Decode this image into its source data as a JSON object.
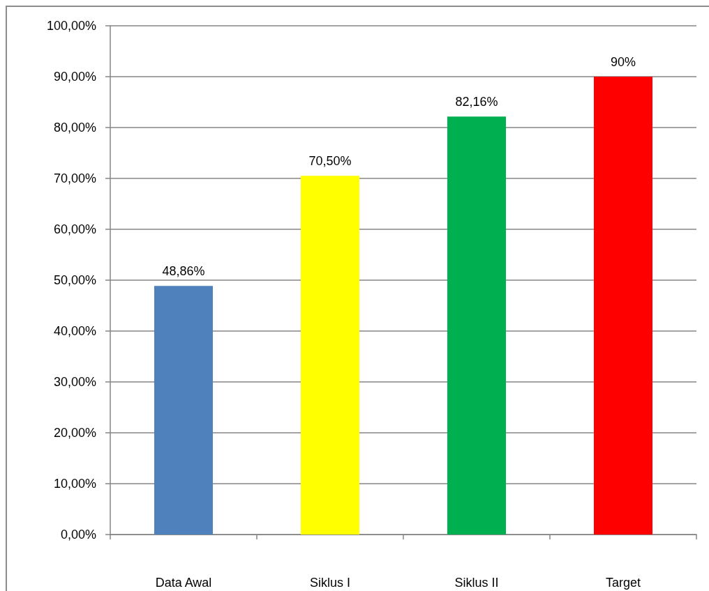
{
  "chart_data": {
    "type": "bar",
    "categories": [
      "Data Awal",
      "Siklus I",
      "Siklus II",
      "Target"
    ],
    "values": [
      48.86,
      70.5,
      82.16,
      90
    ],
    "colors": [
      "#4f81bd",
      "#ffff00",
      "#00b050",
      "#ff0000"
    ],
    "value_labels": [
      "48,86%",
      "70,50%",
      "82,16%",
      "90%"
    ],
    "ylim": [
      0,
      100
    ],
    "yticks": [
      {
        "value": 0,
        "label": "0,00%"
      },
      {
        "value": 10,
        "label": "10,00%"
      },
      {
        "value": 20,
        "label": "20,00%"
      },
      {
        "value": 30,
        "label": "30,00%"
      },
      {
        "value": 40,
        "label": "40,00%"
      },
      {
        "value": 50,
        "label": "50,00%"
      },
      {
        "value": 60,
        "label": "60,00%"
      },
      {
        "value": 70,
        "label": "70,00%"
      },
      {
        "value": 80,
        "label": "80,00%"
      },
      {
        "value": 90,
        "label": "90,00%"
      },
      {
        "value": 100,
        "label": "100,00%"
      }
    ],
    "grid": "y"
  }
}
